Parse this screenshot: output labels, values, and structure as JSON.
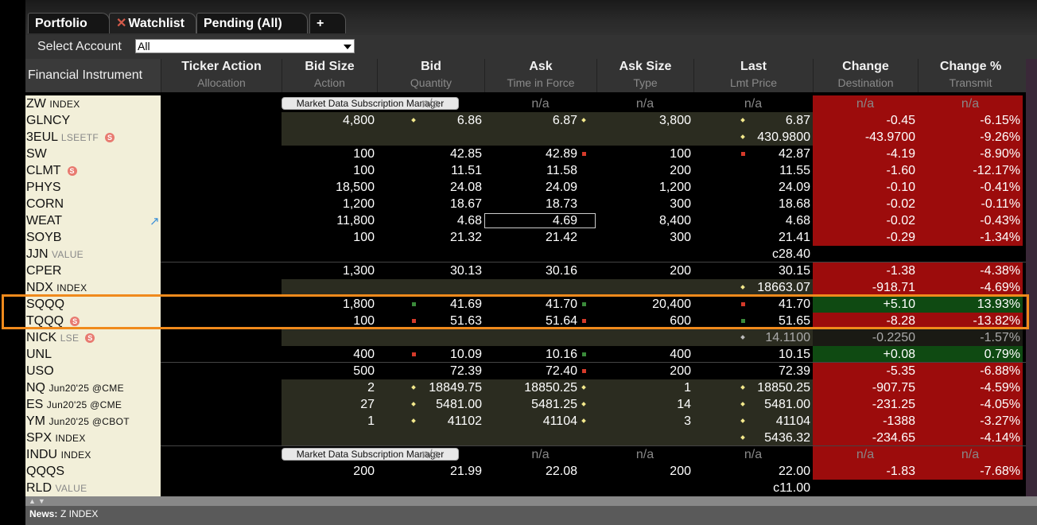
{
  "tabs": [
    {
      "label": "Portfolio",
      "active": false
    },
    {
      "label": "Watchlist",
      "active": true,
      "close_icon": "x-icon"
    },
    {
      "label": "Pending (All)",
      "active": false
    },
    {
      "label": "+",
      "active": false
    }
  ],
  "toolbar": {
    "select_account_label": "Select Account",
    "account_value": "All"
  },
  "header": {
    "financial_instrument": "Financial Instrument",
    "columns": [
      {
        "top": "Ticker Action",
        "bottom": "Allocation"
      },
      {
        "top": "Bid Size",
        "bottom": "Action"
      },
      {
        "top": "Bid",
        "bottom": "Quantity"
      },
      {
        "top": "Ask",
        "bottom": "Time in Force"
      },
      {
        "top": "Ask Size",
        "bottom": "Type"
      },
      {
        "top": "Last",
        "bottom": "Lmt Price"
      },
      {
        "top": "Change",
        "bottom": "Destination"
      },
      {
        "top": "Change %",
        "bottom": "Transmit"
      }
    ]
  },
  "na": "n/a",
  "mds_label": "Market Data Subscription Manager",
  "rows": [
    {
      "symbol": "ZW",
      "sub": "INDEX",
      "type": "mds",
      "chg_color": "red"
    },
    {
      "symbol": "GLNCY",
      "bidsize": "4,800",
      "bid": "6.86",
      "ask": "6.87",
      "asksize": "3,800",
      "last": "6.87",
      "change": "-0.45",
      "changepct": "-6.15%",
      "chg_color": "red",
      "olive": true,
      "bid_dot": "y",
      "ask_dot": "y",
      "last_dot": "y"
    },
    {
      "symbol": "3EUL",
      "sub": "LSEETF",
      "sub_grey": true,
      "badge": true,
      "last": "430.9800",
      "change": "-43.9700",
      "changepct": "-9.26%",
      "chg_color": "red",
      "olive": true,
      "last_dot": "y"
    },
    {
      "symbol": "SW",
      "bidsize": "100",
      "bid": "42.85",
      "ask": "42.89",
      "asksize": "100",
      "last": "42.87",
      "change": "-4.19",
      "changepct": "-8.90%",
      "chg_color": "red",
      "ask_dot": "r",
      "last_dot": "r"
    },
    {
      "symbol": "CLMT",
      "badge": true,
      "bidsize": "100",
      "bid": "11.51",
      "ask": "11.58",
      "asksize": "200",
      "last": "11.55",
      "change": "-1.60",
      "changepct": "-12.17%",
      "chg_color": "red"
    },
    {
      "symbol": "PHYS",
      "bidsize": "18,500",
      "bid": "24.08",
      "ask": "24.09",
      "asksize": "1,200",
      "last": "24.09",
      "change": "-0.10",
      "changepct": "-0.41%",
      "chg_color": "red"
    },
    {
      "symbol": "CORN",
      "bidsize": "1,200",
      "bid": "18.67",
      "ask": "18.73",
      "asksize": "300",
      "last": "18.68",
      "change": "-0.02",
      "changepct": "-0.11%",
      "chg_color": "red"
    },
    {
      "symbol": "WEAT",
      "arrow": true,
      "bidsize": "11,800",
      "bid": "4.68",
      "ask": "4.69",
      "asksize": "8,400",
      "last": "4.68",
      "change": "-0.02",
      "changepct": "-0.43%",
      "chg_color": "red",
      "askbox": true
    },
    {
      "symbol": "SOYB",
      "bidsize": "100",
      "bid": "21.32",
      "ask": "21.42",
      "asksize": "300",
      "last": "21.41",
      "change": "-0.29",
      "changepct": "-1.34%",
      "chg_color": "red"
    },
    {
      "symbol": "JJN",
      "sub": "VALUE",
      "sub_grey": true,
      "last": "c28.40",
      "chg_color": "none"
    },
    {
      "symbol": "CPER",
      "bidsize": "1,300",
      "bid": "30.13",
      "ask": "30.16",
      "asksize": "200",
      "last": "30.15",
      "change": "-1.38",
      "changepct": "-4.38%",
      "chg_color": "red"
    },
    {
      "symbol": "NDX",
      "sub": "INDEX",
      "last": "18663.07",
      "change": "-918.71",
      "changepct": "-4.69%",
      "chg_color": "red",
      "olive": true,
      "last_dot": "y"
    },
    {
      "symbol": "SQQQ",
      "bidsize": "1,800",
      "bid": "41.69",
      "ask": "41.70",
      "asksize": "20,400",
      "last": "41.70",
      "change": "+5.10",
      "changepct": "13.93%",
      "chg_color": "green",
      "bid_dot": "g",
      "ask_dot": "g",
      "last_dot": "r"
    },
    {
      "symbol": "TQQQ",
      "badge": true,
      "bidsize": "100",
      "bid": "51.63",
      "ask": "51.64",
      "asksize": "600",
      "last": "51.65",
      "change": "-8.28",
      "changepct": "-13.82%",
      "chg_color": "red",
      "bid_dot": "r",
      "ask_dot": "r",
      "last_dot": "g"
    },
    {
      "symbol": "NICK",
      "sub": "LSE",
      "sub_grey": true,
      "badge": true,
      "last": "14.1100",
      "change": "-0.2250",
      "changepct": "-1.57%",
      "chg_color": "dark",
      "olive": true,
      "last_dot": "w",
      "dim": true
    },
    {
      "symbol": "UNL",
      "bidsize": "400",
      "bid": "10.09",
      "ask": "10.16",
      "asksize": "400",
      "last": "10.15",
      "change": "+0.08",
      "changepct": "0.79%",
      "chg_color": "green",
      "bid_dot": "r",
      "ask_dot": "g"
    },
    {
      "symbol": "USO",
      "bidsize": "500",
      "bid": "72.39",
      "ask": "72.40",
      "asksize": "200",
      "last": "72.39",
      "change": "-5.35",
      "changepct": "-6.88%",
      "chg_color": "red",
      "ask_dot": "r"
    },
    {
      "symbol": "NQ",
      "sub": "Jun20'25 @CME",
      "bidsize": "2",
      "bid": "18849.75",
      "ask": "18850.25",
      "asksize": "1",
      "last": "18850.25",
      "change": "-907.75",
      "changepct": "-4.59%",
      "chg_color": "red",
      "olive": true,
      "bid_dot": "y",
      "ask_dot": "y",
      "last_dot": "y"
    },
    {
      "symbol": "ES",
      "sub": "Jun20'25 @CME",
      "bidsize": "27",
      "bid": "5481.00",
      "ask": "5481.25",
      "asksize": "14",
      "last": "5481.00",
      "change": "-231.25",
      "changepct": "-4.05%",
      "chg_color": "red",
      "olive": true,
      "bid_dot": "y",
      "ask_dot": "y",
      "last_dot": "y"
    },
    {
      "symbol": "YM",
      "sub": "Jun20'25 @CBOT",
      "bidsize": "1",
      "bid": "41102",
      "ask": "41104",
      "asksize": "3",
      "last": "41104",
      "change": "-1388",
      "changepct": "-3.27%",
      "chg_color": "red",
      "olive": true,
      "bid_dot": "y",
      "ask_dot": "y",
      "last_dot": "y"
    },
    {
      "symbol": "SPX",
      "sub": "INDEX",
      "last": "5436.32",
      "change": "-234.65",
      "changepct": "-4.14%",
      "chg_color": "red",
      "olive": true,
      "last_dot": "y"
    },
    {
      "symbol": "INDU",
      "sub": "INDEX",
      "type": "mds",
      "chg_color": "red"
    },
    {
      "symbol": "QQQS",
      "bidsize": "200",
      "bid": "21.99",
      "ask": "22.08",
      "asksize": "200",
      "last": "22.00",
      "change": "-1.83",
      "changepct": "-7.68%",
      "chg_color": "red"
    },
    {
      "symbol": "RLD",
      "sub": "VALUE",
      "sub_grey": true,
      "last": "c11.00",
      "chg_color": "none"
    }
  ],
  "news": {
    "label": "News:",
    "value": "Z INDEX"
  }
}
